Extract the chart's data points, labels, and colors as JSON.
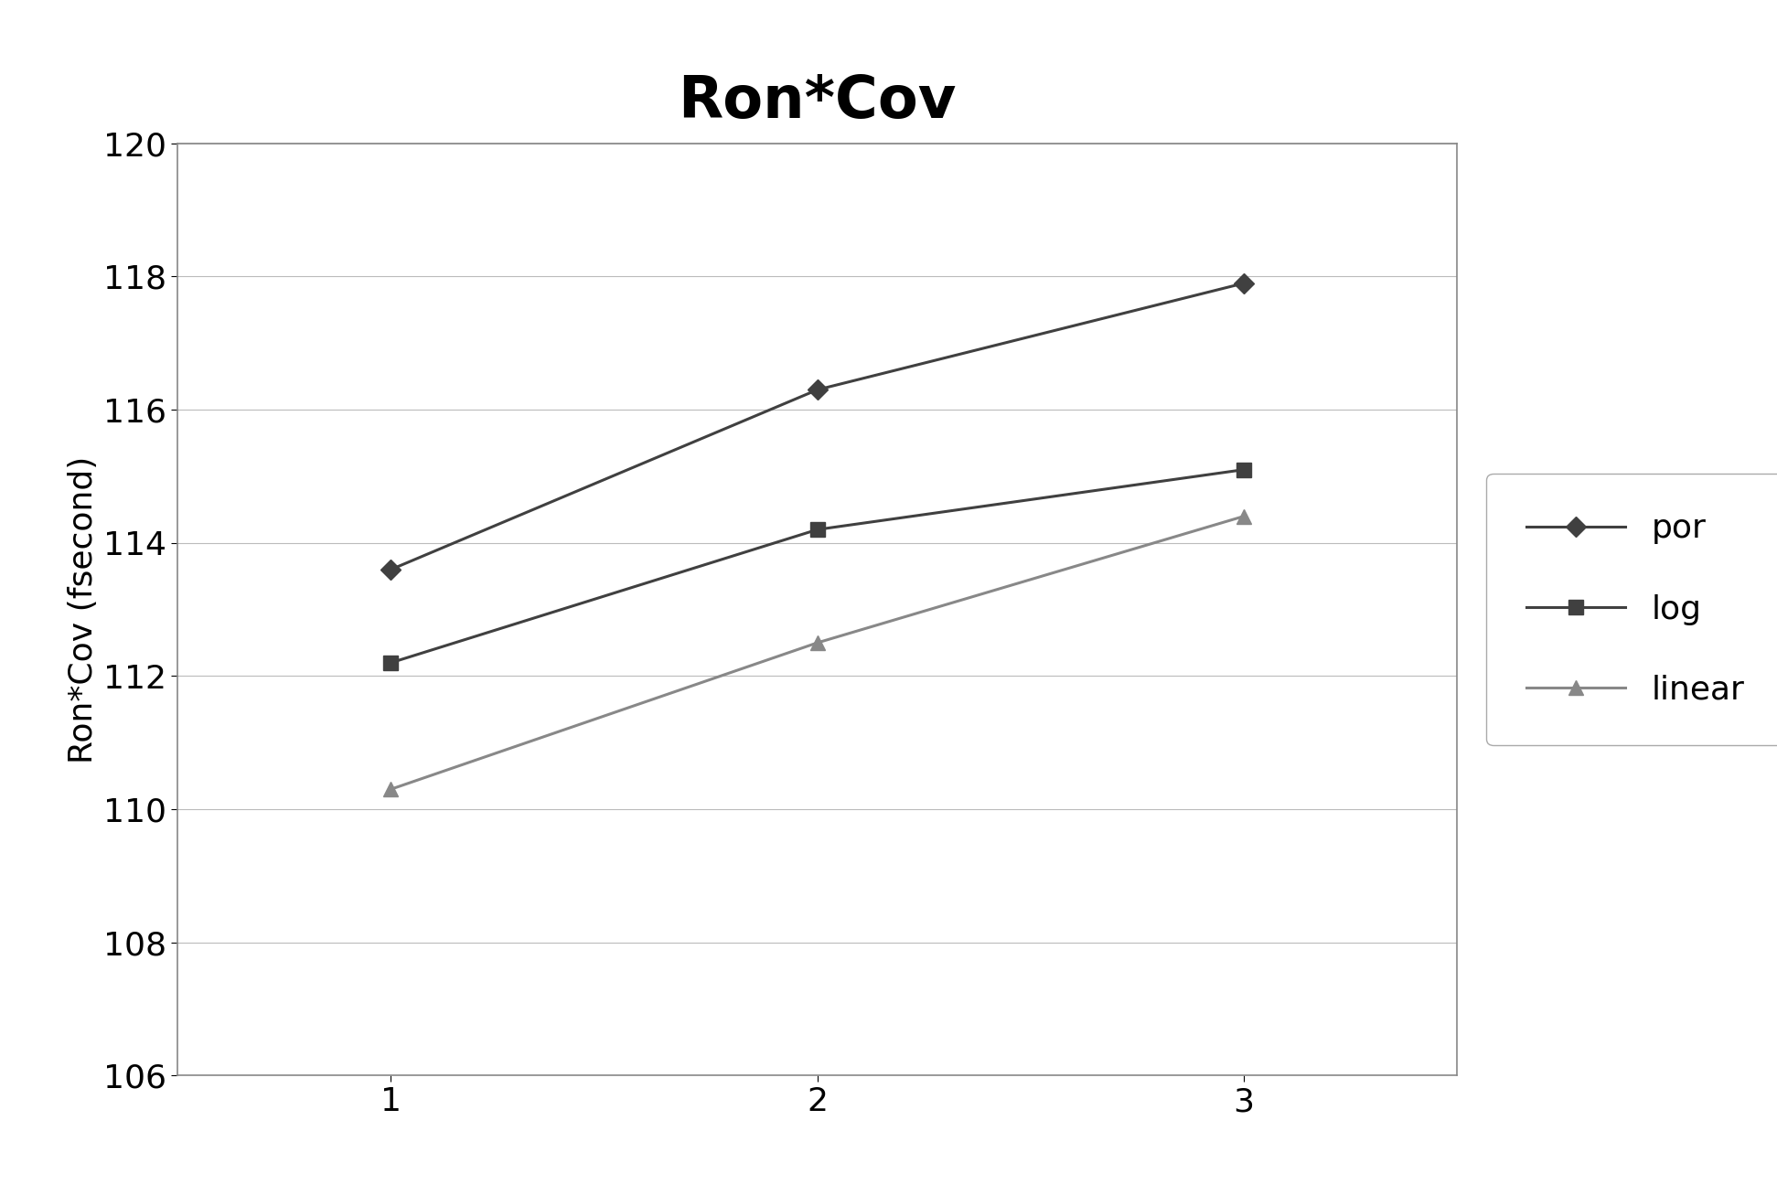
{
  "title": "Ron*Cov",
  "ylabel": "Ron*Cov (fsecond)",
  "xlabel": "",
  "x": [
    1,
    2,
    3
  ],
  "series_order": [
    "por",
    "log",
    "linear"
  ],
  "series": {
    "por": {
      "y": [
        113.6,
        116.3,
        117.9
      ],
      "color": "#404040",
      "marker": "D",
      "markersize": 11,
      "linewidth": 2.2
    },
    "log": {
      "y": [
        112.2,
        114.2,
        115.1
      ],
      "color": "#404040",
      "marker": "s",
      "markersize": 11,
      "linewidth": 2.2
    },
    "linear": {
      "y": [
        110.3,
        112.5,
        114.4
      ],
      "color": "#888888",
      "marker": "^",
      "markersize": 11,
      "linewidth": 2.2
    }
  },
  "ylim": [
    106,
    120
  ],
  "xlim": [
    0.5,
    3.5
  ],
  "yticks": [
    106,
    108,
    110,
    112,
    114,
    116,
    118,
    120
  ],
  "xticks": [
    1,
    2,
    3
  ],
  "title_fontsize": 46,
  "axis_label_fontsize": 26,
  "tick_fontsize": 26,
  "legend_fontsize": 26,
  "outer_bg_color": "#ffffff",
  "plot_bg_color": "#ffffff",
  "grid_color": "#bbbbbb",
  "spine_color": "#888888",
  "outer_border_color": "#000000",
  "chart_border_color": "#888888"
}
